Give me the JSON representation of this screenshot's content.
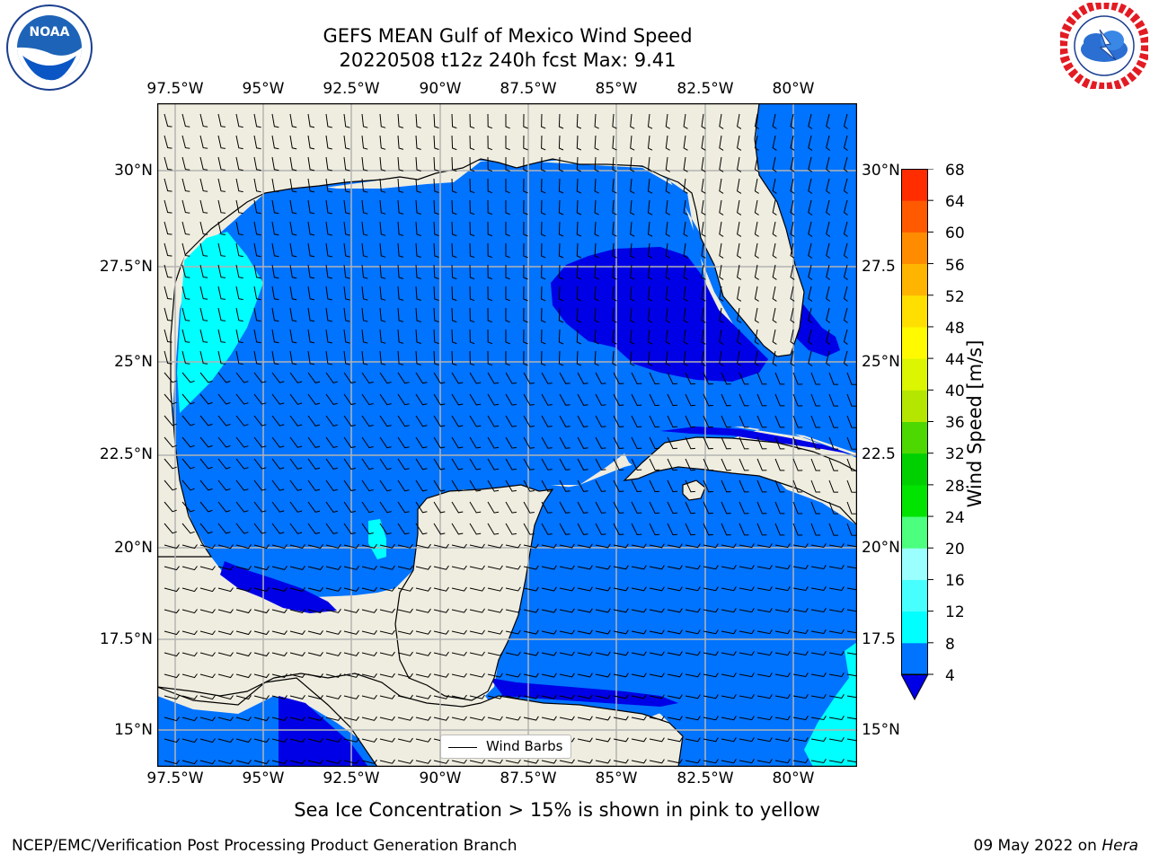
{
  "title": {
    "line1": "GEFS MEAN Gulf of Mexico Wind Speed",
    "line2": "20220508 t12z 240h fcst   Max: 9.41"
  },
  "logos": {
    "left": {
      "name": "NOAA",
      "text": "NOAA",
      "ring_text": "NATIONAL OCEANIC AND ATMOSPHERIC ADMINISTRATION · U.S. DEPARTMENT OF COMMERCE"
    },
    "right": {
      "name": "National Weather Service",
      "ring_text": "NATIONAL WEATHER SERVICE"
    }
  },
  "axes": {
    "lon_labels": [
      "97.5°W",
      "95°W",
      "92.5°W",
      "90°W",
      "87.5°W",
      "85°W",
      "82.5°W",
      "80°W"
    ],
    "lat_labels": [
      "30°N",
      "27.5°N",
      "25°N",
      "22.5°N",
      "20°N",
      "17.5°N",
      "15°N"
    ],
    "lat_labels_right": [
      "30°N",
      "27.5",
      "25°N",
      "22.5",
      "20°N",
      "17.5",
      "15°N"
    ],
    "lon_range": [
      -98.5,
      -78.5
    ],
    "lat_range": [
      14.0,
      31.7
    ]
  },
  "colorbar": {
    "label": "Wind Speed [m/s]",
    "ticks": [
      "68",
      "64",
      "60",
      "56",
      "52",
      "48",
      "44",
      "40",
      "36",
      "32",
      "28",
      "24",
      "20",
      "16",
      "12",
      "8",
      "4"
    ],
    "levels": [
      4,
      8,
      12,
      16,
      20,
      24,
      28,
      32,
      36,
      40,
      44,
      48,
      52,
      56,
      60,
      64,
      68
    ],
    "colors": [
      "#0073ff",
      "#00ffff",
      "#48ffff",
      "#9bffff",
      "#4cff7f",
      "#00e400",
      "#00d000",
      "#4cd800",
      "#b4e600",
      "#dcf500",
      "#fffa00",
      "#ffdf00",
      "#ffb400",
      "#ff8c00",
      "#ff5a00",
      "#ff2d00"
    ],
    "under_color": "#0000e6",
    "extend": "min"
  },
  "colors": {
    "land": "#efeddf",
    "low_wind": "#0000e6",
    "mid_wind": "#0073ff",
    "high_wind": "#00ffff",
    "grid": "#b3b3b3",
    "coast": "#000000"
  },
  "legend": {
    "label": "Wind Barbs"
  },
  "caption": "Sea Ice Concentration > 15% is shown in pink to yellow",
  "footer": {
    "left": "NCEP/EMC/Verification Post Processing Product Generation Branch",
    "right_prefix": "09 May 2022 on ",
    "right_machine": "Hera"
  }
}
